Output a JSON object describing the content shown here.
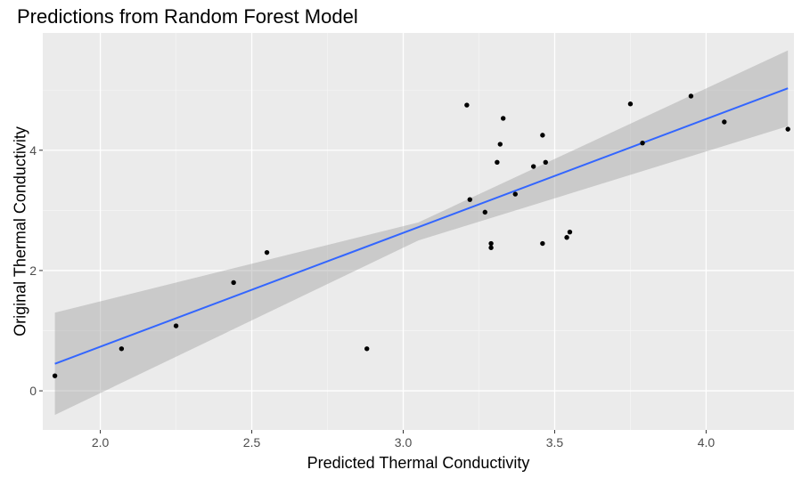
{
  "chart_data": {
    "type": "scatter",
    "title": "Predictions from Random Forest Model",
    "xlabel": "Predicted Thermal Conductivity",
    "ylabel": "Original Thermal Conductivity",
    "xlim": [
      1.81,
      4.29
    ],
    "ylim": [
      -0.65,
      5.95
    ],
    "x_ticks": [
      2.0,
      2.5,
      3.0,
      3.5,
      4.0
    ],
    "x_tick_labels": [
      "2.0",
      "2.5",
      "3.0",
      "3.5",
      "4.0"
    ],
    "y_ticks": [
      0,
      2,
      4
    ],
    "y_tick_labels": [
      "0",
      "2",
      "4"
    ],
    "grid": true,
    "legend": "none",
    "colors": {
      "panel_background": "#EBEBEB",
      "grid_major": "#FFFFFF",
      "points": "#000000",
      "fit_line": "#3366FF",
      "confidence_band": "#999999"
    },
    "points": [
      {
        "x": 1.85,
        "y": 0.25
      },
      {
        "x": 2.07,
        "y": 0.7
      },
      {
        "x": 2.25,
        "y": 1.08
      },
      {
        "x": 2.44,
        "y": 1.8
      },
      {
        "x": 2.55,
        "y": 2.3
      },
      {
        "x": 2.88,
        "y": 0.7
      },
      {
        "x": 3.21,
        "y": 4.75
      },
      {
        "x": 3.22,
        "y": 3.18
      },
      {
        "x": 3.27,
        "y": 2.97
      },
      {
        "x": 3.29,
        "y": 2.45
      },
      {
        "x": 3.29,
        "y": 2.38
      },
      {
        "x": 3.31,
        "y": 3.8
      },
      {
        "x": 3.32,
        "y": 4.1
      },
      {
        "x": 3.33,
        "y": 4.53
      },
      {
        "x": 3.37,
        "y": 3.27
      },
      {
        "x": 3.43,
        "y": 3.73
      },
      {
        "x": 3.46,
        "y": 4.25
      },
      {
        "x": 3.47,
        "y": 3.8
      },
      {
        "x": 3.46,
        "y": 2.45
      },
      {
        "x": 3.54,
        "y": 2.55
      },
      {
        "x": 3.55,
        "y": 2.64
      },
      {
        "x": 3.75,
        "y": 4.77
      },
      {
        "x": 3.79,
        "y": 4.12
      },
      {
        "x": 3.95,
        "y": 4.9
      },
      {
        "x": 4.06,
        "y": 4.47
      },
      {
        "x": 4.27,
        "y": 4.35
      }
    ],
    "fit_line": {
      "x": [
        1.85,
        4.27
      ],
      "y": [
        0.45,
        5.03
      ]
    },
    "confidence_band": {
      "x": [
        1.85,
        3.05,
        4.27
      ],
      "lower": [
        -0.4,
        2.5,
        4.4
      ],
      "upper": [
        1.3,
        2.8,
        5.66
      ]
    }
  }
}
